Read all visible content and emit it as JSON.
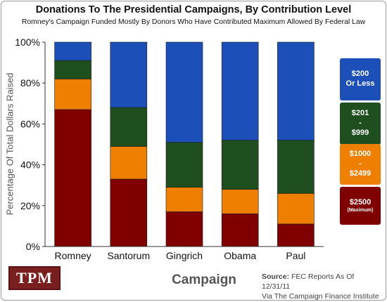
{
  "chart_data": {
    "type": "bar",
    "stacked": true,
    "title": "Donations To The Presidential Campaigns, By Contribution Level",
    "subtitle": "Romney's Campaign Funded Mostly By Donors Who Have Contributed Maximum Allowed By Federal Law",
    "xlabel": "Campaign",
    "ylabel": "Percentage Of Total Dollars Raised",
    "ylim": [
      0,
      100
    ],
    "yticks": [
      0,
      20,
      40,
      60,
      80,
      100
    ],
    "ytick_labels": [
      "0%",
      "20%",
      "40%",
      "60%",
      "80%",
      "100%"
    ],
    "categories": [
      "Romney",
      "Santorum",
      "Gingrich",
      "Obama",
      "Paul"
    ],
    "series": [
      {
        "name": "$2500 (Maximum)",
        "color": "#800000",
        "values": [
          67,
          33,
          17,
          16,
          11
        ]
      },
      {
        "name": "$1000 - $2499",
        "color": "#ee7f00",
        "values": [
          15,
          16,
          12,
          12,
          15
        ]
      },
      {
        "name": "$201 - $999",
        "color": "#1f4f1f",
        "values": [
          9,
          19,
          22,
          24,
          26
        ]
      },
      {
        "name": "$200 Or Less",
        "color": "#1d4fb8",
        "values": [
          9,
          32,
          49,
          48,
          48
        ]
      }
    ],
    "grid": false,
    "legend_position": "right"
  },
  "legend": [
    {
      "label": "$200\nOr Less",
      "sub": "",
      "color": "#1d4fb8"
    },
    {
      "label": "$201\n-\n$999",
      "sub": "",
      "color": "#1f4f1f"
    },
    {
      "label": "$1000\n-\n$2499",
      "sub": "",
      "color": "#ee7f00"
    },
    {
      "label": "$2500",
      "sub": "(Maximum)",
      "color": "#800000"
    }
  ],
  "logo": {
    "text": "TPM"
  },
  "source": {
    "label": "Source:",
    "line1": "FEC Reports As Of 12/31/11",
    "line2": "Via The Campaign Finance Institute"
  }
}
